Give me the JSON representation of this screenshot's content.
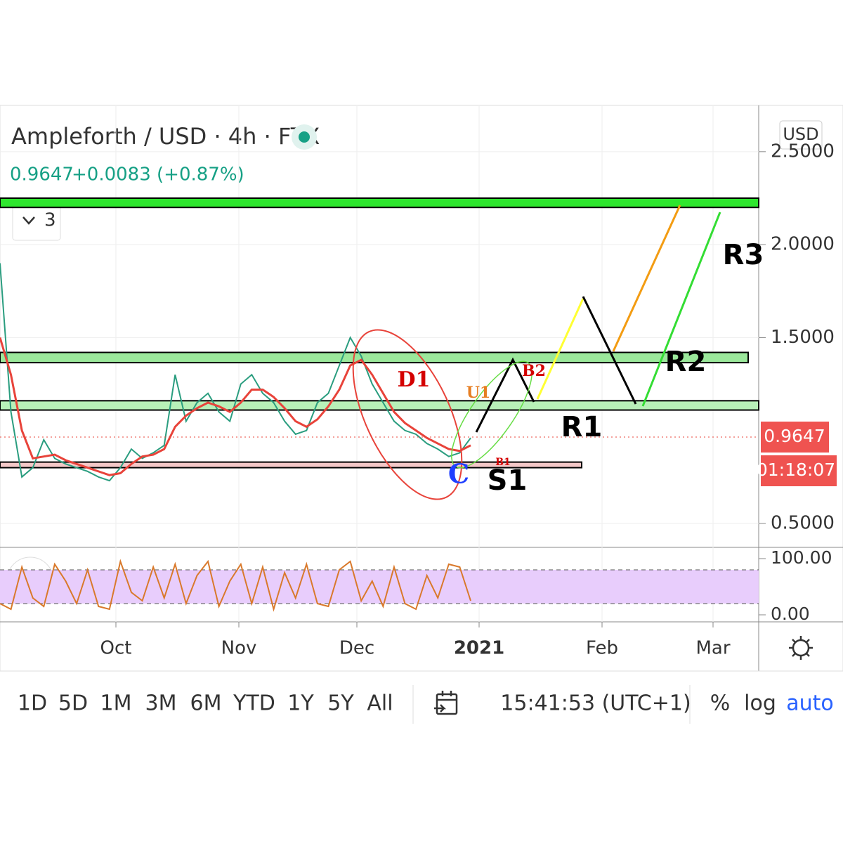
{
  "header": {
    "title": "Ampleforth / USD · 4h · FTX",
    "change": "+0.0083 (+0.87%)",
    "indicator_count": "3",
    "currency": "USD"
  },
  "chart_data": {
    "type": "line",
    "series": [
      {
        "color": "#2a9d7f",
        "values": [
          1.9,
          1.1,
          0.75,
          0.8,
          0.95,
          0.85,
          0.82,
          0.8,
          0.78,
          0.75,
          0.73,
          0.8,
          0.9,
          0.85,
          0.88,
          0.92,
          1.3,
          1.05,
          1.15,
          1.2,
          1.1,
          1.05,
          1.25,
          1.3,
          1.2,
          1.15,
          1.05,
          0.98,
          1.0,
          1.15,
          1.2,
          1.35,
          1.5,
          1.4,
          1.25,
          1.15,
          1.05,
          1.0,
          0.98,
          0.93,
          0.9,
          0.86,
          0.88,
          0.96
        ]
      },
      {
        "color": "#e8433a",
        "values": [
          1.5,
          1.3,
          1.0,
          0.85,
          0.86,
          0.87,
          0.84,
          0.82,
          0.8,
          0.78,
          0.76,
          0.77,
          0.82,
          0.86,
          0.87,
          0.9,
          1.02,
          1.08,
          1.12,
          1.15,
          1.13,
          1.1,
          1.15,
          1.22,
          1.22,
          1.18,
          1.12,
          1.05,
          1.02,
          1.06,
          1.13,
          1.22,
          1.35,
          1.38,
          1.3,
          1.2,
          1.1,
          1.04,
          1.0,
          0.96,
          0.93,
          0.9,
          0.89,
          0.92
        ]
      }
    ],
    "ylim": [
      0.375,
      2.73
    ],
    "yticks": [
      {
        "value": 2.5,
        "label": "2.5000"
      },
      {
        "value": 2,
        "label": "2.0000"
      },
      {
        "value": 1.5,
        "label": "1.5000"
      },
      {
        "value": 0.5,
        "label": "0.5000"
      }
    ],
    "xticks": [
      "Oct",
      "Nov",
      "Dec",
      "2021",
      "Feb",
      "Mar"
    ],
    "last_price": 0.9647,
    "countdown": "01:18:07",
    "zones": [
      {
        "low": 2.2,
        "high": 2.25,
        "color": "#2ee62e"
      },
      {
        "low": 1.365,
        "high": 1.42,
        "color": "#9be89b"
      },
      {
        "low": 1.11,
        "high": 1.16,
        "color": "#b8f0b8"
      },
      {
        "low": 0.8,
        "high": 0.83,
        "color": "#f4c8c8"
      }
    ],
    "annotations": [
      "R3",
      "R2",
      "R1",
      "S1",
      "D1",
      "U1",
      "B2",
      "C",
      "B1"
    ],
    "oscillator": {
      "ylim": [
        0,
        100
      ],
      "yticks": [
        {
          "value": 100,
          "label": "100.00"
        },
        {
          "value": 0,
          "label": "0.00"
        }
      ],
      "bands": [
        80,
        20
      ],
      "color": "#d9792b",
      "values": [
        20,
        10,
        85,
        30,
        15,
        90,
        60,
        20,
        80,
        15,
        10,
        95,
        40,
        25,
        85,
        30,
        90,
        20,
        70,
        95,
        15,
        60,
        90,
        20,
        85,
        10,
        75,
        30,
        90,
        20,
        15,
        80,
        95,
        25,
        60,
        15,
        85,
        20,
        10,
        70,
        30,
        90,
        85,
        25
      ]
    }
  },
  "toolbar": {
    "ranges": [
      "1D",
      "5D",
      "1M",
      "3M",
      "6M",
      "YTD",
      "1Y",
      "5Y",
      "All"
    ],
    "clock": "15:41:53 (UTC+1)",
    "percent": "%",
    "log": "log",
    "auto": "auto"
  }
}
